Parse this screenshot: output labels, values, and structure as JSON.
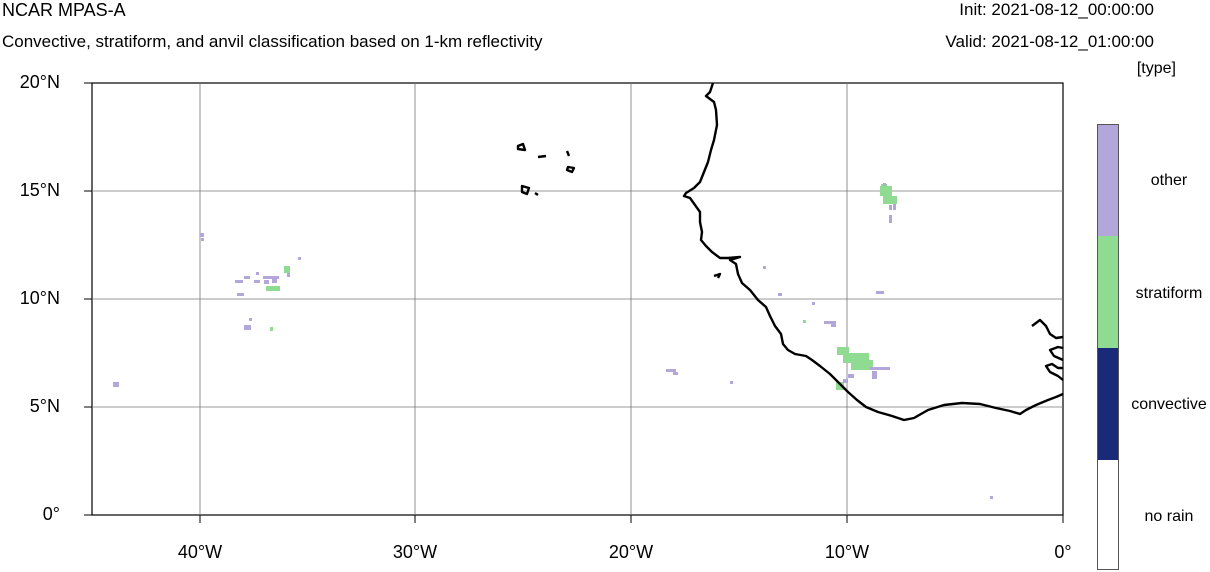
{
  "header": {
    "title": "NCAR MPAS-A",
    "subtitle": "Convective, stratiform, and anvil classification based on 1-km reflectivity",
    "init": "Init: 2021-08-12_00:00:00",
    "valid": "Valid: 2021-08-12_01:00:00"
  },
  "map": {
    "lon_range": [
      -45,
      0
    ],
    "lat_range": [
      0,
      20
    ],
    "y_ticks": [
      {
        "label": "20°N"
      },
      {
        "label": "15°N"
      },
      {
        "label": "10°N"
      },
      {
        "label": "5°N"
      },
      {
        "label": "0°"
      }
    ],
    "x_ticks": [
      {
        "label": "40°W"
      },
      {
        "label": "30°W"
      },
      {
        "label": "20°W"
      },
      {
        "label": "10°W"
      },
      {
        "label": "0°"
      }
    ],
    "gridlines": true
  },
  "legend": {
    "units": "[type]",
    "entries": [
      {
        "label": "other",
        "color": "#b3a6da"
      },
      {
        "label": "stratiform",
        "color": "#8fdb91"
      },
      {
        "label": "convective",
        "color": "#1b2a78"
      },
      {
        "label": "no rain",
        "color": "#ffffff"
      }
    ]
  }
}
